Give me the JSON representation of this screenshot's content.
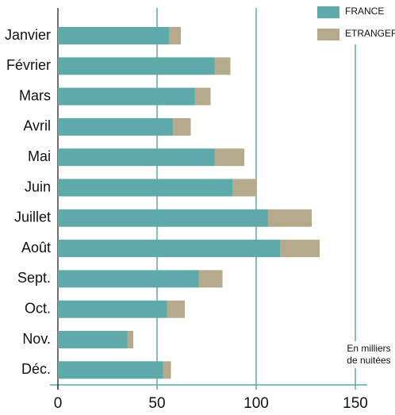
{
  "chart_data": {
    "type": "stacked-barh",
    "categories": [
      "Janvier",
      "Février",
      "Mars",
      "Avril",
      "Mai",
      "Juin",
      "Juillet",
      "Août",
      "Sept.",
      "Oct.",
      "Nov.",
      "Déc."
    ],
    "series": [
      {
        "name": "FRANCE",
        "color": "#5ea9a9",
        "values": [
          56,
          79,
          69,
          58,
          79,
          88,
          106,
          112,
          71,
          55,
          35,
          53
        ]
      },
      {
        "name": "ETRANGER",
        "color": "#b5aa8c",
        "values": [
          6,
          8,
          8,
          9,
          15,
          12,
          22,
          20,
          12,
          9,
          3,
          4
        ]
      }
    ],
    "xlim": [
      0,
      155
    ],
    "xticks": [
      0,
      50,
      100,
      150
    ],
    "grid": true,
    "legend": "top-right",
    "annotation": [
      "En milliers",
      "de nuitées"
    ]
  }
}
